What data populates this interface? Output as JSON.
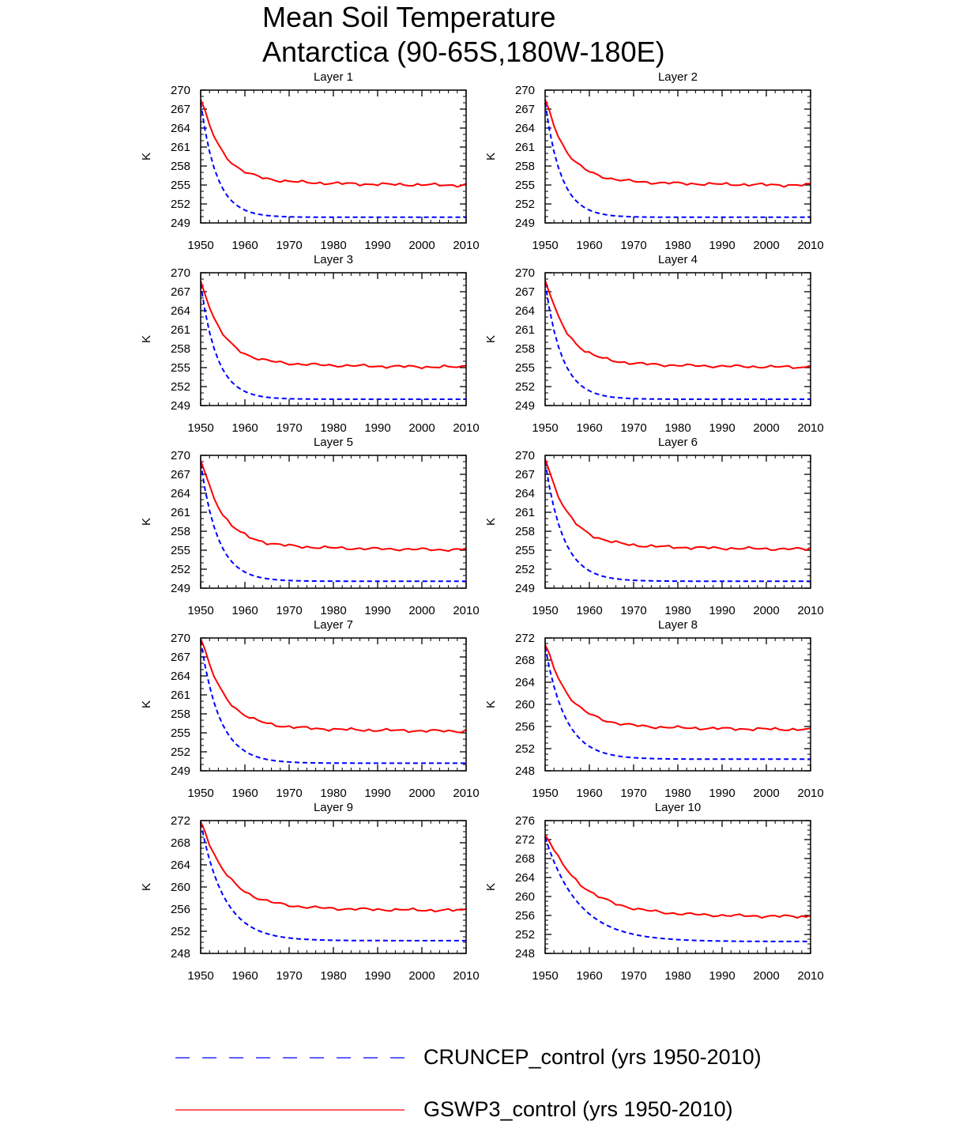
{
  "title_line1": "Mean Soil Temperature",
  "title_line2": "Antarctica (90-65S,180W-180E)",
  "legend": [
    {
      "label": "CRUNCEP_control (yrs 1950-2010)",
      "color": "#0000ff",
      "style": "dashed"
    },
    {
      "label": "GSWP3_control (yrs 1950-2010)",
      "color": "#ff0000",
      "style": "solid"
    }
  ],
  "chart_data": [
    {
      "type": "line",
      "title": "Layer 1",
      "ylabel": "K",
      "xlim": [
        1950,
        2010
      ],
      "ylim": [
        249,
        270
      ],
      "yticks": [
        249,
        252,
        255,
        258,
        261,
        264,
        267,
        270
      ],
      "xticks": [
        1950,
        1960,
        1970,
        1980,
        1990,
        2000,
        2010
      ],
      "series": [
        {
          "name": "CRUNCEP_control (yrs 1950-2010)",
          "start": 268,
          "end": 249.9,
          "tau": 3.6
        },
        {
          "name": "GSWP3_control (yrs 1950-2010)",
          "start": 268.5,
          "end": 255.2,
          "tau": 4.5
        }
      ]
    },
    {
      "type": "line",
      "title": "Layer 2",
      "ylabel": "K",
      "xlim": [
        1950,
        2010
      ],
      "ylim": [
        249,
        270
      ],
      "yticks": [
        249,
        252,
        255,
        258,
        261,
        264,
        267,
        270
      ],
      "xticks": [
        1950,
        1960,
        1970,
        1980,
        1990,
        2000,
        2010
      ],
      "series": [
        {
          "name": "CRUNCEP_control (yrs 1950-2010)",
          "start": 268,
          "end": 249.9,
          "tau": 3.6
        },
        {
          "name": "GSWP3_control (yrs 1950-2010)",
          "start": 268.5,
          "end": 255.2,
          "tau": 4.5
        }
      ]
    },
    {
      "type": "line",
      "title": "Layer 3",
      "ylabel": "K",
      "xlim": [
        1950,
        2010
      ],
      "ylim": [
        249,
        270
      ],
      "yticks": [
        249,
        252,
        255,
        258,
        261,
        264,
        267,
        270
      ],
      "xticks": [
        1950,
        1960,
        1970,
        1980,
        1990,
        2000,
        2010
      ],
      "series": [
        {
          "name": "CRUNCEP_control (yrs 1950-2010)",
          "start": 268.2,
          "end": 250,
          "tau": 3.7
        },
        {
          "name": "GSWP3_control (yrs 1950-2010)",
          "start": 268.7,
          "end": 255.3,
          "tau": 4.5
        }
      ]
    },
    {
      "type": "line",
      "title": "Layer 4",
      "ylabel": "K",
      "xlim": [
        1950,
        2010
      ],
      "ylim": [
        249,
        270
      ],
      "yticks": [
        249,
        252,
        255,
        258,
        261,
        264,
        267,
        270
      ],
      "xticks": [
        1950,
        1960,
        1970,
        1980,
        1990,
        2000,
        2010
      ],
      "series": [
        {
          "name": "CRUNCEP_control (yrs 1950-2010)",
          "start": 268.4,
          "end": 250,
          "tau": 3.8
        },
        {
          "name": "GSWP3_control (yrs 1950-2010)",
          "start": 268.8,
          "end": 255.3,
          "tau": 4.6
        }
      ]
    },
    {
      "type": "line",
      "title": "Layer 5",
      "ylabel": "K",
      "xlim": [
        1950,
        2010
      ],
      "ylim": [
        249,
        270
      ],
      "yticks": [
        249,
        252,
        255,
        258,
        261,
        264,
        267,
        270
      ],
      "xticks": [
        1950,
        1960,
        1970,
        1980,
        1990,
        2000,
        2010
      ],
      "series": [
        {
          "name": "CRUNCEP_control (yrs 1950-2010)",
          "start": 268.8,
          "end": 250.1,
          "tau": 3.9
        },
        {
          "name": "GSWP3_control (yrs 1950-2010)",
          "start": 269.2,
          "end": 255.3,
          "tau": 4.7
        }
      ]
    },
    {
      "type": "line",
      "title": "Layer 6",
      "ylabel": "K",
      "xlim": [
        1950,
        2010
      ],
      "ylim": [
        249,
        270
      ],
      "yticks": [
        249,
        252,
        255,
        258,
        261,
        264,
        267,
        270
      ],
      "xticks": [
        1950,
        1960,
        1970,
        1980,
        1990,
        2000,
        2010
      ],
      "series": [
        {
          "name": "CRUNCEP_control (yrs 1950-2010)",
          "start": 269,
          "end": 250.1,
          "tau": 4.1
        },
        {
          "name": "GSWP3_control (yrs 1950-2010)",
          "start": 269.4,
          "end": 255.4,
          "tau": 4.8
        }
      ]
    },
    {
      "type": "line",
      "title": "Layer 7",
      "ylabel": "K",
      "xlim": [
        1950,
        2010
      ],
      "ylim": [
        249,
        270
      ],
      "yticks": [
        249,
        252,
        255,
        258,
        261,
        264,
        267,
        270
      ],
      "xticks": [
        1950,
        1960,
        1970,
        1980,
        1990,
        2000,
        2010
      ],
      "series": [
        {
          "name": "CRUNCEP_control (yrs 1950-2010)",
          "start": 269.6,
          "end": 250.2,
          "tau": 4.3
        },
        {
          "name": "GSWP3_control (yrs 1950-2010)",
          "start": 269.9,
          "end": 255.5,
          "tau": 4.9
        }
      ]
    },
    {
      "type": "line",
      "title": "Layer 8",
      "ylabel": "K",
      "xlim": [
        1950,
        2010
      ],
      "ylim": [
        248,
        272
      ],
      "yticks": [
        248,
        252,
        256,
        260,
        264,
        268,
        272
      ],
      "xticks": [
        1950,
        1960,
        1970,
        1980,
        1990,
        2000,
        2010
      ],
      "series": [
        {
          "name": "CRUNCEP_control (yrs 1950-2010)",
          "start": 270.4,
          "end": 250.1,
          "tau": 4.6
        },
        {
          "name": "GSWP3_control (yrs 1950-2010)",
          "start": 270.8,
          "end": 255.7,
          "tau": 5.1
        }
      ]
    },
    {
      "type": "line",
      "title": "Layer 9",
      "ylabel": "K",
      "xlim": [
        1950,
        2010
      ],
      "ylim": [
        248,
        272
      ],
      "yticks": [
        248,
        252,
        256,
        260,
        264,
        268,
        272
      ],
      "xticks": [
        1950,
        1960,
        1970,
        1980,
        1990,
        2000,
        2010
      ],
      "series": [
        {
          "name": "CRUNCEP_control (yrs 1950-2010)",
          "start": 271.6,
          "end": 250.3,
          "tau": 5.3
        },
        {
          "name": "GSWP3_control (yrs 1950-2010)",
          "start": 271.8,
          "end": 256,
          "tau": 5.7
        }
      ]
    },
    {
      "type": "line",
      "title": "Layer 10",
      "ylabel": "K",
      "xlim": [
        1950,
        2010
      ],
      "ylim": [
        248,
        276
      ],
      "yticks": [
        248,
        252,
        256,
        260,
        264,
        268,
        272,
        276
      ],
      "xticks": [
        1950,
        1960,
        1970,
        1980,
        1990,
        2000,
        2010
      ],
      "series": [
        {
          "name": "CRUNCEP_control (yrs 1950-2010)",
          "start": 272.5,
          "end": 250.5,
          "tau": 7.5
        },
        {
          "name": "GSWP3_control (yrs 1950-2010)",
          "start": 272.9,
          "end": 256,
          "tau": 7.8
        }
      ]
    }
  ]
}
